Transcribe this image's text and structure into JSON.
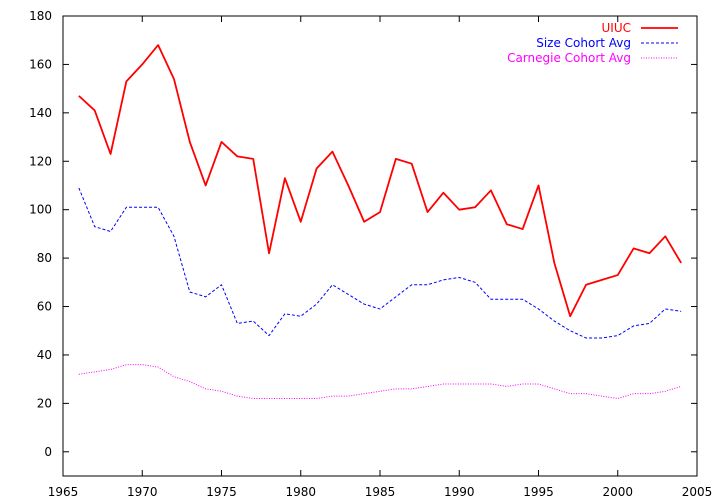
{
  "chart_data": {
    "type": "line",
    "title": "",
    "xlabel": "",
    "ylabel": "",
    "xlim": [
      1965,
      2005
    ],
    "ylim": [
      -10,
      180
    ],
    "xticks": [
      1965,
      1970,
      1975,
      1980,
      1985,
      1990,
      1995,
      2000,
      2005
    ],
    "yticks": [
      0,
      20,
      40,
      60,
      80,
      100,
      120,
      140,
      160,
      180
    ],
    "grid": false,
    "legend_position": "top-right",
    "series": [
      {
        "name": "UIUC",
        "color": "#ff0000",
        "style": "solid",
        "x": [
          1966,
          1967,
          1968,
          1969,
          1970,
          1971,
          1972,
          1973,
          1974,
          1975,
          1976,
          1977,
          1978,
          1979,
          1980,
          1981,
          1982,
          1983,
          1984,
          1985,
          1986,
          1987,
          1988,
          1989,
          1990,
          1991,
          1992,
          1993,
          1994,
          1995,
          1996,
          1997,
          1998,
          1999,
          2000,
          2001,
          2002,
          2003,
          2004
        ],
        "y": [
          147,
          141,
          123,
          153,
          160,
          168,
          154,
          128,
          110,
          128,
          122,
          121,
          82,
          113,
          95,
          117,
          124,
          110,
          95,
          99,
          121,
          119,
          99,
          107,
          100,
          101,
          108,
          94,
          92,
          110,
          78,
          56,
          69,
          71,
          73,
          84,
          82,
          89,
          78
        ]
      },
      {
        "name": "Size Cohort Avg",
        "color": "#0000ff",
        "style": "dashed",
        "x": [
          1966,
          1967,
          1968,
          1969,
          1970,
          1971,
          1972,
          1973,
          1974,
          1975,
          1976,
          1977,
          1978,
          1979,
          1980,
          1981,
          1982,
          1983,
          1984,
          1985,
          1986,
          1987,
          1988,
          1989,
          1990,
          1991,
          1992,
          1993,
          1994,
          1995,
          1996,
          1997,
          1998,
          1999,
          2000,
          2001,
          2002,
          2003,
          2004
        ],
        "y": [
          109,
          93,
          91,
          101,
          101,
          101,
          89,
          66,
          64,
          69,
          53,
          54,
          48,
          57,
          56,
          61,
          69,
          65,
          61,
          59,
          64,
          69,
          69,
          71,
          72,
          70,
          63,
          63,
          63,
          59,
          54,
          50,
          47,
          47,
          48,
          52,
          53,
          59,
          58
        ]
      },
      {
        "name": "Carnegie Cohort Avg",
        "color": "#ff00ff",
        "style": "dotted",
        "x": [
          1966,
          1967,
          1968,
          1969,
          1970,
          1971,
          1972,
          1973,
          1974,
          1975,
          1976,
          1977,
          1978,
          1979,
          1980,
          1981,
          1982,
          1983,
          1984,
          1985,
          1986,
          1987,
          1988,
          1989,
          1990,
          1991,
          1992,
          1993,
          1994,
          1995,
          1996,
          1997,
          1998,
          1999,
          2000,
          2001,
          2002,
          2003,
          2004
        ],
        "y": [
          32,
          33,
          34,
          36,
          36,
          35,
          31,
          29,
          26,
          25,
          23,
          22,
          22,
          22,
          22,
          22,
          23,
          23,
          24,
          25,
          26,
          26,
          27,
          28,
          28,
          28,
          28,
          27,
          28,
          28,
          26,
          24,
          24,
          23,
          22,
          24,
          24,
          25,
          27
        ]
      }
    ]
  }
}
